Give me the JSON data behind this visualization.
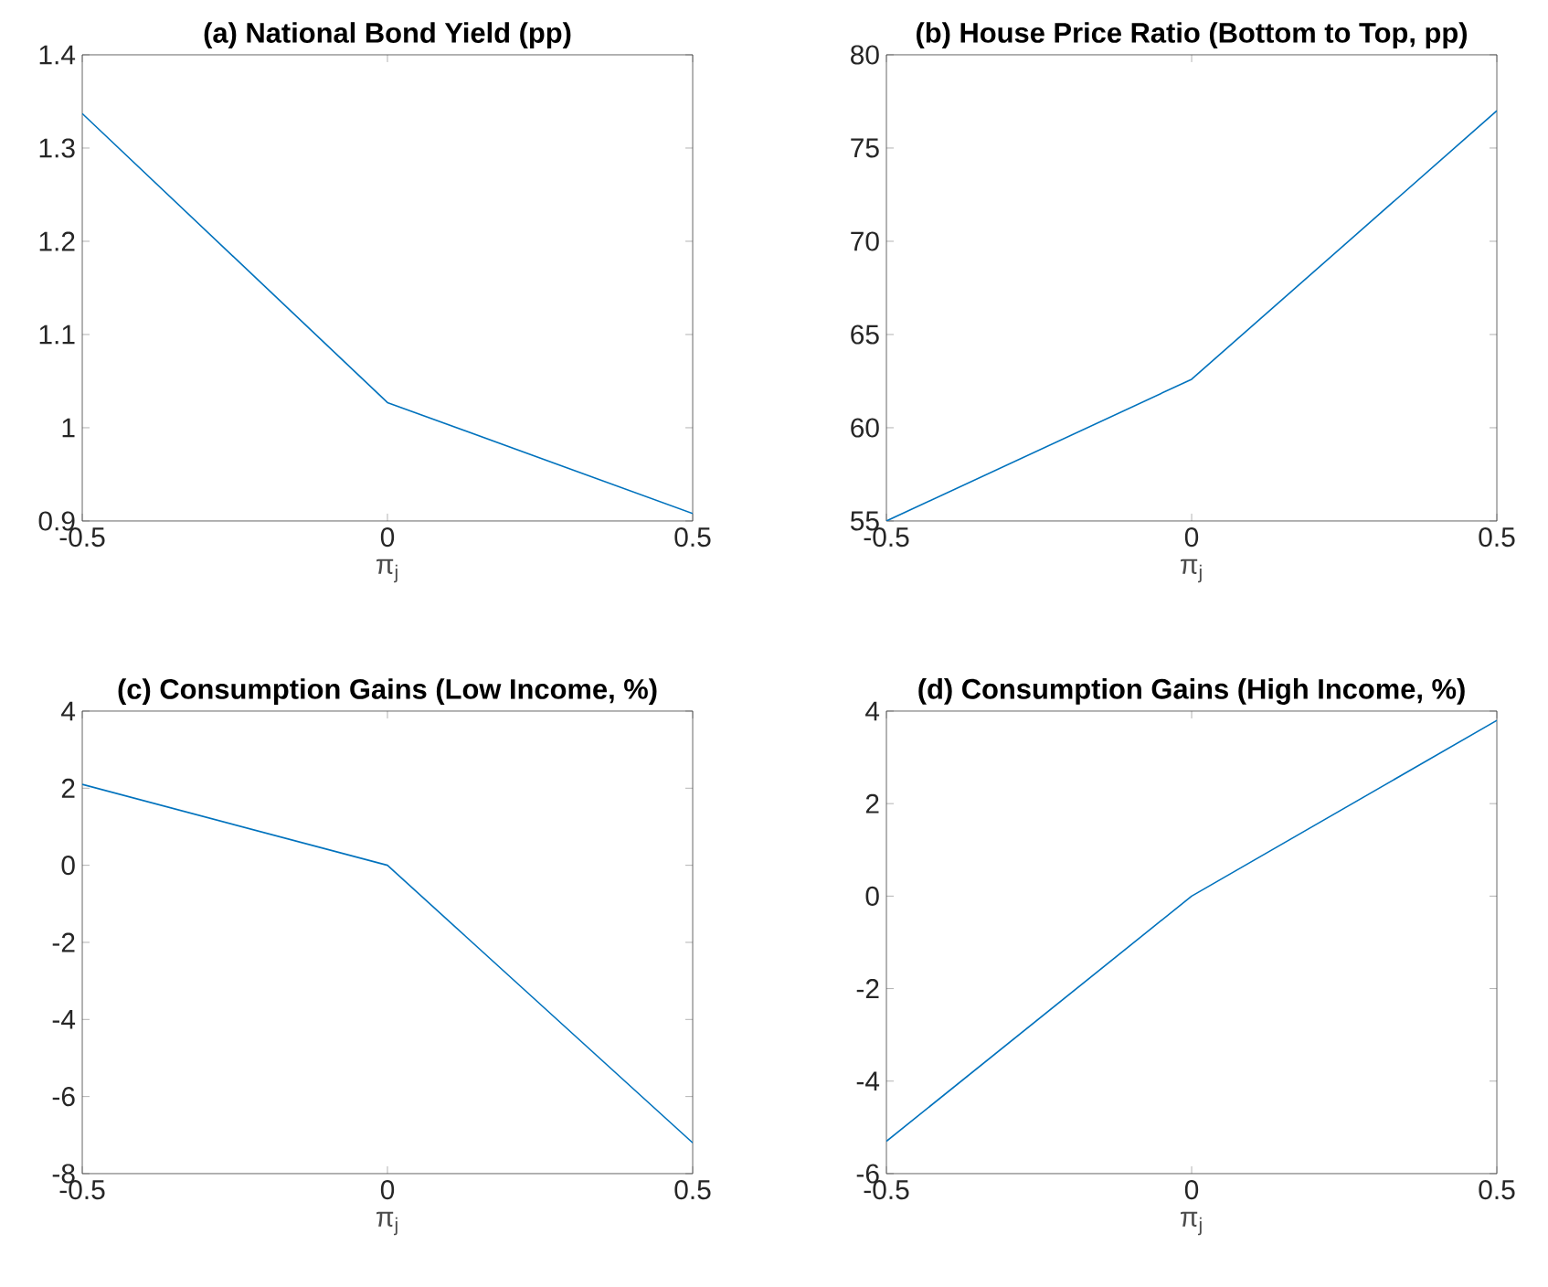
{
  "chart_data": [
    {
      "type": "line",
      "title": "(a) National Bond Yield (pp)",
      "xlabel": "π$_{j}$",
      "x": [
        -0.5,
        0,
        0.5
      ],
      "values": [
        1.337,
        1.027,
        0.908
      ],
      "color": "#0072bd",
      "xlim": [
        -0.5,
        0.5
      ],
      "xticks": [
        -0.5,
        0,
        0.5
      ],
      "ylim": [
        0.9,
        1.4
      ],
      "yticks": [
        0.9,
        1,
        1.1,
        1.2,
        1.3,
        1.4
      ]
    },
    {
      "type": "line",
      "title": "(b) House Price Ratio (Bottom to Top, pp)",
      "xlabel": "π$_{j}$",
      "x": [
        -0.5,
        0,
        0.5
      ],
      "values": [
        55,
        62.6,
        77
      ],
      "color": "#0072bd",
      "xlim": [
        -0.5,
        0.5
      ],
      "xticks": [
        -0.5,
        0,
        0.5
      ],
      "ylim": [
        55,
        80
      ],
      "yticks": [
        55,
        60,
        65,
        70,
        75,
        80
      ]
    },
    {
      "type": "line",
      "title": "(c) Consumption Gains (Low Income, %)",
      "xlabel": "π$_{j}$",
      "x": [
        -0.5,
        0,
        0.5
      ],
      "values": [
        2.1,
        0,
        -7.2
      ],
      "color": "#0072bd",
      "xlim": [
        -0.5,
        0.5
      ],
      "xticks": [
        -0.5,
        0,
        0.5
      ],
      "ylim": [
        -8,
        4
      ],
      "yticks": [
        -8,
        -6,
        -4,
        -2,
        0,
        2,
        4
      ]
    },
    {
      "type": "line",
      "title": "(d) Consumption Gains (High Income, %)",
      "xlabel": "π$_{j}$",
      "x": [
        -0.5,
        0,
        0.5
      ],
      "values": [
        -5.3,
        0,
        3.8
      ],
      "color": "#0072bd",
      "xlim": [
        -0.5,
        0.5
      ],
      "xticks": [
        -0.5,
        0,
        0.5
      ],
      "ylim": [
        -6,
        4
      ],
      "yticks": [
        -6,
        -4,
        -2,
        0,
        2,
        4
      ]
    }
  ]
}
